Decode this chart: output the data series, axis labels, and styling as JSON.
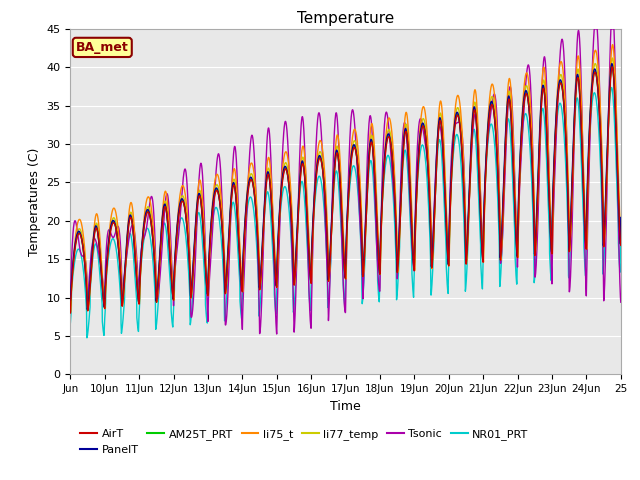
{
  "title": "Temperature",
  "xlabel": "Time",
  "ylabel": "Temperatures (C)",
  "ylim": [
    0,
    45
  ],
  "xlim": [
    0,
    16
  ],
  "bg_color": "#e8e8e8",
  "fig_color": "#ffffff",
  "annotation_text": "BA_met",
  "annotation_bg": "#ffff99",
  "annotation_border": "#8B0000",
  "series_colors": {
    "AirT": "#cc0000",
    "PanelT": "#000099",
    "AM25T_PRT": "#00cc00",
    "li75_t": "#ff8800",
    "li77_temp": "#cccc00",
    "Tsonic": "#aa00aa",
    "NR01_PRT": "#00cccc"
  },
  "legend_order": [
    "AirT",
    "PanelT",
    "AM25T_PRT",
    "li75_t",
    "li77_temp",
    "Tsonic",
    "NR01_PRT"
  ],
  "xtick_positions": [
    0,
    1,
    2,
    3,
    4,
    5,
    6,
    7,
    8,
    9,
    10,
    11,
    12,
    13,
    14,
    15,
    16
  ],
  "xtick_labels": [
    "Jun",
    "10Jun",
    "11Jun",
    "12Jun",
    "13Jun",
    "14Jun",
    "15Jun",
    "16Jun",
    "17Jun",
    "18Jun",
    "19Jun",
    "20Jun",
    "21Jun",
    "22Jun",
    "23Jun",
    "24Jun",
    "25"
  ],
  "ytick_labels": [
    0,
    5,
    10,
    15,
    20,
    25,
    30,
    35,
    40,
    45
  ]
}
